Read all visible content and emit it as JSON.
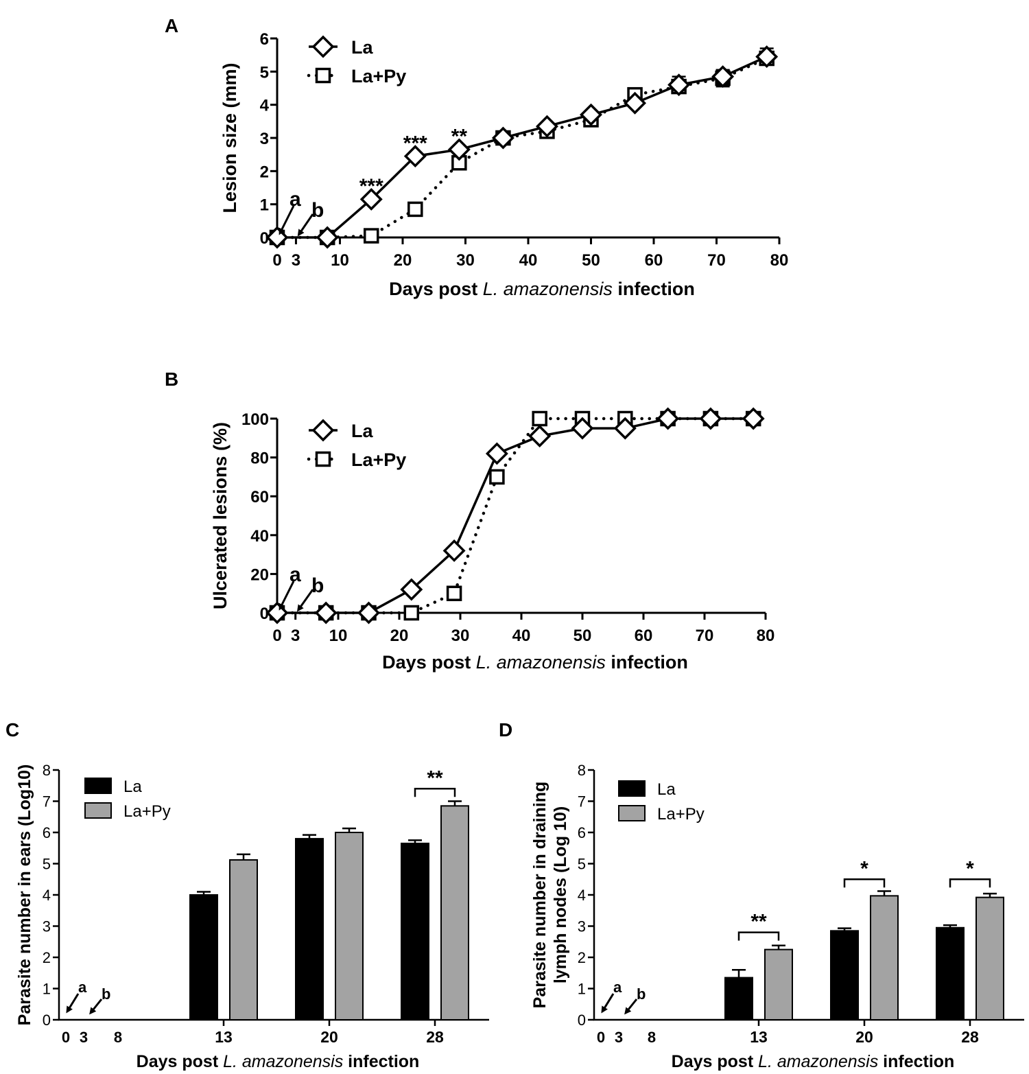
{
  "chart_data": [
    {
      "panel": "A",
      "type": "line",
      "xlabel_parts": [
        "Days post ",
        "L. amazonensis",
        " infection"
      ],
      "ylabel": "Lesion size (mm)",
      "xticks": [
        0,
        3,
        10,
        20,
        30,
        40,
        50,
        60,
        70,
        80
      ],
      "yticks": [
        0,
        1,
        2,
        3,
        4,
        5,
        6
      ],
      "xlim": [
        0,
        80
      ],
      "ylim": [
        0,
        6
      ],
      "legend": [
        "La",
        "La+Py"
      ],
      "series": [
        {
          "name": "La",
          "marker": "diamond",
          "style": "solid",
          "x": [
            0,
            8,
            15,
            22,
            29,
            36,
            43,
            50,
            57,
            64,
            71,
            78
          ],
          "y": [
            0,
            0,
            1.15,
            2.45,
            2.65,
            3.0,
            3.35,
            3.7,
            4.05,
            4.6,
            4.85,
            5.45
          ],
          "err": [
            0,
            0,
            0.05,
            0.05,
            0.05,
            0.05,
            0.05,
            0.05,
            0.05,
            0.25,
            0.2,
            0.25
          ]
        },
        {
          "name": "La+Py",
          "marker": "square",
          "style": "dotted",
          "x": [
            0,
            8,
            15,
            22,
            29,
            36,
            43,
            50,
            57,
            64,
            71,
            78
          ],
          "y": [
            0,
            0,
            0.05,
            0.85,
            2.25,
            3.0,
            3.2,
            3.55,
            4.3,
            4.55,
            4.8,
            5.4
          ],
          "err": [
            0,
            0,
            0.03,
            0.05,
            0.05,
            0.05,
            0.05,
            0.05,
            0.05,
            0.2,
            0.25,
            0.2
          ]
        }
      ],
      "annotations": [
        {
          "text": "***",
          "x": 15,
          "y": 1.55
        },
        {
          "text": "***",
          "x": 22,
          "y": 2.85
        },
        {
          "text": "**",
          "x": 29,
          "y": 3.05
        }
      ],
      "arrows": [
        {
          "text": "a",
          "x": 0
        },
        {
          "text": "b",
          "x": 3
        }
      ]
    },
    {
      "panel": "B",
      "type": "line",
      "xlabel_parts": [
        "Days post ",
        "L. amazonensis",
        " infection"
      ],
      "ylabel": "Ulcerated lesions (%)",
      "xticks": [
        0,
        3,
        10,
        20,
        30,
        40,
        50,
        60,
        70,
        80
      ],
      "yticks": [
        0,
        20,
        40,
        60,
        80,
        100
      ],
      "xlim": [
        0,
        80
      ],
      "ylim": [
        0,
        100
      ],
      "legend": [
        "La",
        "La+Py"
      ],
      "series": [
        {
          "name": "La",
          "marker": "diamond",
          "style": "solid",
          "x": [
            0,
            8,
            15,
            22,
            29,
            36,
            43,
            50,
            57,
            64,
            71,
            78
          ],
          "y": [
            0,
            0,
            0,
            12,
            32,
            82,
            91,
            95,
            95,
            100,
            100,
            100
          ]
        },
        {
          "name": "La+Py",
          "marker": "square",
          "style": "dotted",
          "x": [
            0,
            8,
            15,
            22,
            29,
            36,
            43,
            50,
            57,
            64,
            71,
            78
          ],
          "y": [
            0,
            0,
            0,
            0,
            10,
            70,
            100,
            100,
            100,
            100,
            100,
            100
          ]
        }
      ],
      "arrows": [
        {
          "text": "a",
          "x": 0
        },
        {
          "text": "b",
          "x": 3
        }
      ]
    },
    {
      "panel": "C",
      "type": "bar",
      "xlabel_parts": [
        "Days post ",
        "L. amazonensis",
        " infection"
      ],
      "ylabel": "Parasite number in ears (Log10)",
      "ylabel_lines": [
        "Parasite number in ears (Log10)"
      ],
      "categories": [
        "0",
        "3",
        "8",
        "13",
        "20",
        "28"
      ],
      "yticks": [
        0,
        1,
        2,
        3,
        4,
        5,
        6,
        7,
        8
      ],
      "ylim": [
        0,
        8
      ],
      "legend": [
        "La",
        "La+Py"
      ],
      "series": [
        {
          "name": "La",
          "color": "#000000",
          "values": [
            null,
            null,
            null,
            4.0,
            5.8,
            5.65
          ],
          "err": [
            0,
            0,
            0,
            0.1,
            0.12,
            0.1
          ]
        },
        {
          "name": "La+Py",
          "color": "#a3a3a3",
          "values": [
            null,
            null,
            null,
            5.12,
            6.0,
            6.85
          ],
          "err": [
            0,
            0,
            0,
            0.18,
            0.13,
            0.15
          ]
        }
      ],
      "significance": [
        {
          "category": "28",
          "text": "**",
          "y": 7.4
        }
      ],
      "arrows": [
        {
          "text": "a",
          "cat": "0"
        },
        {
          "text": "b",
          "cat": "3"
        }
      ]
    },
    {
      "panel": "D",
      "type": "bar",
      "xlabel_parts": [
        "Days post ",
        "L. amazonensis",
        " infection"
      ],
      "ylabel": "Parasite number in draining lymph nodes (Log 10)",
      "ylabel_lines": [
        "Parasite number in draining",
        "lymph nodes (Log 10)"
      ],
      "categories": [
        "0",
        "3",
        "8",
        "13",
        "20",
        "28"
      ],
      "yticks": [
        0,
        1,
        2,
        3,
        4,
        5,
        6,
        7,
        8
      ],
      "ylim": [
        0,
        8
      ],
      "legend": [
        "La",
        "La+Py"
      ],
      "series": [
        {
          "name": "La",
          "color": "#000000",
          "values": [
            null,
            null,
            null,
            1.35,
            2.85,
            2.95
          ],
          "err": [
            0,
            0,
            0,
            0.25,
            0.08,
            0.08
          ]
        },
        {
          "name": "La+Py",
          "color": "#a3a3a3",
          "values": [
            null,
            null,
            null,
            2.25,
            3.97,
            3.92
          ],
          "err": [
            0,
            0,
            0,
            0.13,
            0.15,
            0.12
          ]
        }
      ],
      "significance": [
        {
          "category": "13",
          "text": "**",
          "y": 2.8
        },
        {
          "category": "20",
          "text": "*",
          "y": 4.5
        },
        {
          "category": "28",
          "text": "*",
          "y": 4.5
        }
      ],
      "arrows": [
        {
          "text": "a",
          "cat": "0"
        },
        {
          "text": "b",
          "cat": "3"
        }
      ]
    }
  ]
}
